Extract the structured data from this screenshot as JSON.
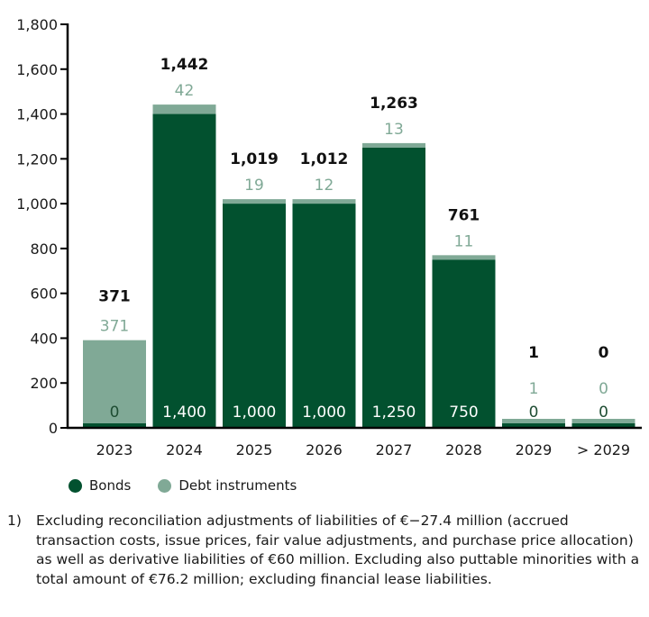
{
  "chart_data": {
    "type": "bar",
    "stacked": true,
    "title": "",
    "xlabel": "",
    "ylabel": "",
    "ylim": [
      0,
      1800
    ],
    "yticks": [
      0,
      200,
      400,
      600,
      800,
      1000,
      1200,
      1400,
      1600,
      1800
    ],
    "ytick_labels": [
      "0",
      "200",
      "400",
      "600",
      "800",
      "1,000",
      "1,200",
      "1,400",
      "1,600",
      "1,800"
    ],
    "categories": [
      "2023",
      "2024",
      "2025",
      "2026",
      "2027",
      "2028",
      "2029",
      "> 2029"
    ],
    "series": [
      {
        "name": "Bonds",
        "color": "#02512f",
        "values": [
          0,
          1400,
          1000,
          1000,
          1250,
          750,
          0,
          0
        ],
        "labels": [
          "0",
          "1,400",
          "1,000",
          "1,000",
          "1,250",
          "750",
          "0",
          "0"
        ]
      },
      {
        "name": "Debt instruments",
        "color": "#80a996",
        "values": [
          371,
          42,
          19,
          12,
          13,
          11,
          1,
          0
        ],
        "labels": [
          "371",
          "42",
          "19",
          "12",
          "13",
          "11",
          "1",
          "0"
        ]
      }
    ],
    "totals": [
      371,
      1442,
      1019,
      1012,
      1263,
      761,
      1,
      0
    ],
    "total_labels": [
      "371",
      "1,442",
      "1,019",
      "1,012",
      "1,263",
      "761",
      "1",
      "0"
    ],
    "grid": false,
    "legend_position": "bottom-left"
  },
  "legend": [
    {
      "label": "Bonds",
      "color": "#02512f"
    },
    {
      "label": "Debt instruments",
      "color": "#80a996"
    }
  ],
  "footnote": {
    "number": "1)",
    "text": "Excluding reconciliation adjustments of liabilities of €−27.4 million (accrued transaction costs, issue prices, fair value adjustments, and purchase price allocation) as well as derivative liabilities of €60 million. Excluding also puttable minorities with a total amount of €76.2 million; excluding financial lease liabilities."
  }
}
